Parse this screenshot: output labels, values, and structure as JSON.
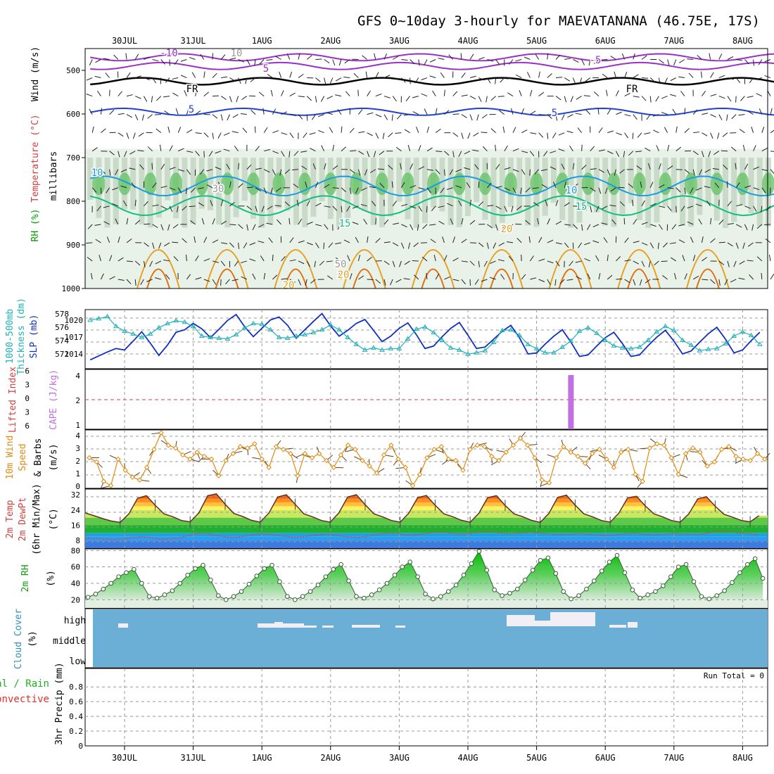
{
  "title": "GFS 0~10day 3-hourly for MAEVATANANA (46.75E, 17S)",
  "dates": [
    "30JUL",
    "31JUL",
    "1AUG",
    "2AUG",
    "3AUG",
    "4AUG",
    "5AUG",
    "6AUG",
    "7AUG",
    "8AUG"
  ],
  "chart_data": [
    {
      "type": "heatmap",
      "name": "upper_air",
      "ylabel_left": [
        "RH (%)",
        "Temperature (°C)",
        "Wind (m/s)"
      ],
      "ylabel_right": "millibars",
      "y_ticks": [
        500,
        600,
        700,
        800,
        900,
        1000
      ],
      "ylim": [
        450,
        1000
      ],
      "contour_labels": [
        "-10",
        "5",
        "FR",
        "5",
        "10",
        "15",
        "20",
        "20",
        "30",
        "50",
        "10",
        "-5",
        "FR",
        "5",
        "10",
        "15",
        "20"
      ],
      "isotherms": [
        {
          "label": "-10",
          "p": 470,
          "color": "#9b30c8"
        },
        {
          "label": "5",
          "p": 490,
          "color": "#9b30c8"
        },
        {
          "label": "FR",
          "p": 525,
          "color": "#000000"
        },
        {
          "label": "5",
          "p": 595,
          "color": "#2040d0"
        },
        {
          "label": "10",
          "p": 765,
          "color": "#1a9ee0"
        },
        {
          "label": "15",
          "p": 810,
          "color": "#10c080"
        }
      ]
    },
    {
      "type": "line",
      "name": "thickness_slp",
      "ylabel": [
        "1000-500mb",
        "Thickness (dm)",
        "SLP (mb)"
      ],
      "left_ticks": [
        "578",
        "576",
        "574",
        "572"
      ],
      "right_ticks": [
        "1020",
        "1017",
        "1014"
      ],
      "series": [
        {
          "name": "SLP",
          "unit": "mb",
          "color": "#1030c0",
          "values": [
            1011.8,
            1012.6,
            1013.4,
            1014.1,
            1013.8,
            1015.6,
            1017.5,
            1015.2,
            1012.7,
            1014.8,
            1017.4,
            1017.9,
            1019.2,
            1018.1,
            1016.3,
            1018.0,
            1019.8,
            1021.0,
            1018.5,
            1016.5,
            1018.2,
            1019.9,
            1020.5,
            1018.8,
            1016.2,
            1017.9,
            1019.6,
            1021.2,
            1018.7,
            1016.6,
            1017.8,
            1019.2,
            1020.0,
            1017.8,
            1015.5,
            1016.6,
            1018.2,
            1019.3,
            1016.9,
            1014.1,
            1014.6,
            1016.5,
            1018.2,
            1019.4,
            1016.8,
            1014.1,
            1014.4,
            1016.0,
            1017.6,
            1018.8,
            1016.3,
            1013.0,
            1013.2,
            1015.0,
            1016.6,
            1017.9,
            1015.4,
            1012.5,
            1012.8,
            1014.6,
            1016.3,
            1017.4,
            1015.1,
            1012.5,
            1012.8,
            1014.7,
            1016.4,
            1017.8,
            1015.6,
            1013.0,
            1013.6,
            1015.4,
            1017.1,
            1018.4,
            1016.0,
            1013.2,
            1013.8,
            1015.7,
            1017.4,
            1018.8,
            1016.3
          ]
        },
        {
          "name": "1000-500mb Thickness",
          "unit": "dm",
          "color": "#20b0b8",
          "values": [
            577.5,
            577.7,
            578.0,
            576.6,
            575.9,
            575.5,
            575.0,
            575.5,
            576.4,
            577.0,
            577.4,
            577.2,
            576.6,
            575.2,
            575.0,
            574.9,
            574.8,
            575.4,
            576.4,
            577.0,
            576.9,
            576.1,
            575.0,
            574.9,
            575.2,
            575.4,
            575.7,
            576.1,
            576.8,
            576.1,
            575.0,
            574.0,
            573.2,
            573.5,
            573.2,
            573.4,
            573.4,
            574.8,
            576.2,
            576.5,
            575.7,
            574.6,
            573.5,
            573.2,
            572.6,
            572.8,
            573.1,
            574.3,
            576.0,
            576.1,
            575.3,
            574.0,
            573.4,
            572.8,
            572.8,
            573.6,
            574.5,
            575.9,
            576.4,
            575.6,
            574.6,
            573.8,
            573.5,
            573.4,
            573.6,
            574.6,
            575.8,
            576.6,
            576.0,
            574.6,
            573.9,
            573.1,
            573.3,
            573.4,
            574.1,
            575.2,
            575.8,
            575.3,
            574.0,
            573.0,
            572.2
          ]
        }
      ]
    },
    {
      "type": "bar",
      "name": "cape_li",
      "ylabel": [
        "Lifted Index",
        "CAPE (J/kg)"
      ],
      "left_ticks": [
        "6",
        "3",
        "0",
        "3",
        "6"
      ],
      "right_ticks": [
        "4",
        "2",
        "1"
      ],
      "cape_bar": {
        "date_index": 6.5,
        "value": 4
      }
    },
    {
      "type": "line",
      "name": "wind10m",
      "ylabel": [
        "10m Wind",
        "Speed",
        "& Barbs",
        "(m/s)"
      ],
      "y_ticks": [
        "4",
        "3",
        "2",
        "1",
        "0"
      ],
      "ylim": [
        0,
        4
      ],
      "series": [
        {
          "name": "10m Wind Speed",
          "unit": "m/s",
          "color": "#e08a10",
          "values": [
            2.2,
            1.9,
            0.5,
            0.2,
            2.1,
            1.3,
            0.8,
            0.6,
            1.5,
            2.8,
            4.0,
            3.1,
            2.9,
            2.4,
            2.1,
            2.6,
            2.3,
            2.1,
            0.9,
            2.0,
            2.5,
            3.0,
            2.9,
            3.2,
            2.1,
            1.5,
            3.0,
            2.8,
            2.5,
            0.9,
            2.5,
            2.2,
            2.5,
            2.0,
            1.5,
            2.4,
            3.1,
            2.8,
            2.0,
            1.6,
            1.1,
            2.4,
            3.1,
            2.1,
            1.5,
            0.2,
            1.0,
            2.2,
            2.8,
            3.0,
            2.1,
            2.0,
            1.3,
            2.8,
            3.1,
            3.0,
            2.3,
            2.0,
            2.6,
            3.1,
            3.6,
            3.1,
            2.2,
            0.6,
            0.4,
            2.2,
            3.0,
            2.6,
            2.3,
            1.8,
            2.5,
            2.8,
            2.1,
            1.5,
            2.6,
            2.8,
            1.0,
            0.5,
            2.9,
            3.2,
            3.1,
            2.2,
            1.0,
            2.5,
            2.9,
            2.6,
            1.6,
            1.9,
            2.8,
            3.0,
            2.3,
            2.1,
            2.0,
            2.5,
            2.1
          ]
        }
      ]
    },
    {
      "type": "line",
      "name": "temp2m",
      "ylabel": [
        "2m Temp",
        "2m DewPt",
        "(6hr Min/Max)",
        "(°C)"
      ],
      "y_ticks": [
        "32",
        "24",
        "16",
        "8"
      ],
      "ylim": [
        4,
        34
      ],
      "series": [
        {
          "name": "2m Temp",
          "unit": "°C",
          "color": "#603020",
          "values": [
            22.5,
            21.0,
            19.5,
            18.2,
            17.5,
            22.0,
            30.2,
            31.5,
            26.5,
            22.0,
            20.5,
            18.5,
            17.8,
            22.5,
            31.5,
            32.5,
            27.0,
            22.2,
            20.6,
            18.6,
            17.6,
            22.4,
            30.8,
            32.0,
            27.0,
            22.0,
            20.4,
            18.5,
            17.6,
            22.5,
            30.8,
            32.0,
            26.8,
            22.0,
            20.4,
            18.5,
            17.6,
            22.4,
            30.5,
            31.6,
            26.5,
            22.0,
            20.5,
            18.6,
            17.6,
            22.3,
            30.5,
            31.5,
            26.4,
            22.0,
            20.5,
            18.6,
            17.5,
            22.2,
            30.6,
            31.8,
            26.6,
            22.0,
            20.4,
            18.5,
            17.6,
            22.4,
            30.4,
            31.2,
            26.2,
            22.0,
            20.4,
            18.5,
            17.6,
            22.0,
            29.8,
            31.0,
            26.0,
            21.8,
            20.2,
            18.5,
            17.8,
            21.0
          ]
        },
        {
          "name": "2m DewPt",
          "unit": "°C",
          "color": "#e04040",
          "values": [
            9.0,
            9.2,
            8.8,
            8.5,
            8.8,
            9.5,
            10.0,
            9.4,
            8.6,
            9.0,
            9.3,
            10.8,
            11.8,
            11.6,
            10.5,
            9.8,
            9.6,
            10.4,
            11.3,
            11.6,
            11.0,
            10.2,
            9.7,
            10.0,
            10.6,
            11.2,
            11.0,
            10.3,
            9.8,
            9.6,
            10.4,
            11.4,
            12.0,
            11.6,
            10.8,
            11.0,
            11.8,
            12.6,
            12.4,
            11.6,
            11.4,
            12.0,
            12.8,
            12.6,
            11.8,
            11.5,
            12.0,
            12.4,
            12.0,
            11.4,
            11.0,
            11.2,
            11.6,
            11.3,
            10.9,
            10.6,
            11.0,
            11.6,
            11.8,
            11.2,
            10.8,
            11.2,
            11.6,
            11.4,
            11.0,
            11.3,
            12.4,
            13.2,
            12.8,
            12.0,
            11.6,
            11.0
          ]
        }
      ]
    },
    {
      "type": "area",
      "name": "rh2m",
      "ylabel": [
        "2m RH",
        "(%)"
      ],
      "y_ticks": [
        "80",
        "60",
        "40",
        "20"
      ],
      "ylim": [
        10,
        82
      ],
      "series": [
        {
          "name": "2m RH",
          "unit": "%",
          "color": "#10c010",
          "values": [
            23,
            27,
            33,
            40,
            48,
            53,
            57,
            40,
            24,
            22,
            26,
            31,
            40,
            50,
            58,
            62,
            44,
            25,
            20,
            24,
            30,
            39,
            49,
            58,
            62,
            42,
            24,
            20,
            24,
            30,
            38,
            48,
            57,
            63,
            43,
            24,
            22,
            26,
            32,
            40,
            50,
            60,
            66,
            48,
            27,
            21,
            24,
            30,
            38,
            50,
            64,
            79,
            56,
            32,
            25,
            28,
            33,
            44,
            56,
            68,
            71,
            52,
            30,
            21,
            25,
            33,
            43,
            55,
            66,
            74,
            53,
            32,
            22,
            26,
            30,
            37,
            48,
            60,
            63,
            42,
            24,
            21,
            25,
            31,
            41,
            53,
            63,
            70,
            46
          ]
        }
      ]
    },
    {
      "type": "area",
      "name": "cloud_cover",
      "ylabel": [
        "Cloud Cover",
        "(%)"
      ],
      "y_ticks": [
        "high",
        "middle",
        "low"
      ]
    },
    {
      "type": "bar",
      "name": "precip",
      "ylabel": [
        "Total / Rain",
        "Convective",
        "3hr Precip (mm)"
      ],
      "y_ticks": [
        "0.8",
        "0.6",
        "0.4",
        "0.2",
        "0"
      ],
      "ylim": [
        0,
        1
      ],
      "run_total_label": "Run Total = 0",
      "values": []
    }
  ]
}
